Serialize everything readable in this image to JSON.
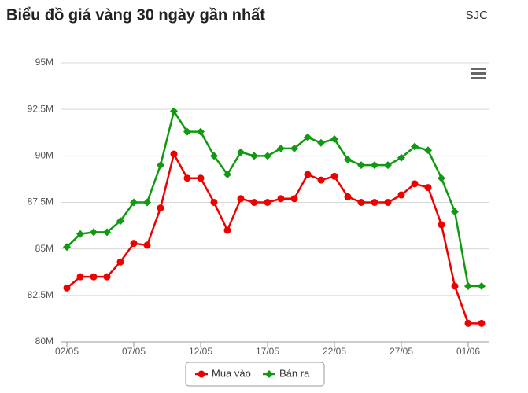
{
  "chart_data": {
    "type": "line",
    "title": "Biểu đồ giá vàng 30 ngày gần nhất",
    "source": "SJC",
    "categories": [
      "02/05",
      null,
      null,
      null,
      null,
      "07/05",
      null,
      null,
      null,
      null,
      "12/05",
      null,
      null,
      null,
      null,
      "17/05",
      null,
      null,
      null,
      null,
      "22/05",
      null,
      null,
      null,
      null,
      "27/05",
      null,
      null,
      null,
      null,
      "01/06",
      null
    ],
    "series": [
      {
        "name": "Mua vào",
        "color": "#ee0000",
        "marker": "circle",
        "values": [
          82900000,
          83500000,
          83500000,
          83500000,
          84300000,
          85300000,
          85200000,
          87200000,
          90100000,
          88800000,
          88800000,
          87500000,
          86000000,
          87700000,
          87500000,
          87500000,
          87700000,
          87700000,
          89000000,
          88700000,
          88900000,
          87800000,
          87500000,
          87500000,
          87500000,
          87900000,
          88500000,
          88300000,
          86300000,
          83000000,
          81000000,
          81000000
        ]
      },
      {
        "name": "Bán ra",
        "color": "#119911",
        "marker": "diamond",
        "values": [
          85100000,
          85800000,
          85900000,
          85900000,
          86500000,
          87500000,
          87500000,
          89500000,
          92400000,
          91300000,
          91300000,
          90000000,
          89000000,
          90200000,
          90000000,
          90000000,
          90400000,
          90400000,
          91000000,
          90700000,
          90900000,
          89800000,
          89500000,
          89500000,
          89500000,
          89900000,
          90500000,
          90300000,
          88800000,
          87000000,
          83000000,
          83000000
        ]
      }
    ],
    "ylim": [
      80000000,
      95000000
    ],
    "yticks": [
      {
        "value": 80000000,
        "label": "80M"
      },
      {
        "value": 82500000,
        "label": "82.5M"
      },
      {
        "value": 85000000,
        "label": "85M"
      },
      {
        "value": 87500000,
        "label": "87.5M"
      },
      {
        "value": 90000000,
        "label": "90M"
      },
      {
        "value": 92500000,
        "label": "92.5M"
      },
      {
        "value": 95000000,
        "label": "95M"
      }
    ],
    "grid": true
  }
}
